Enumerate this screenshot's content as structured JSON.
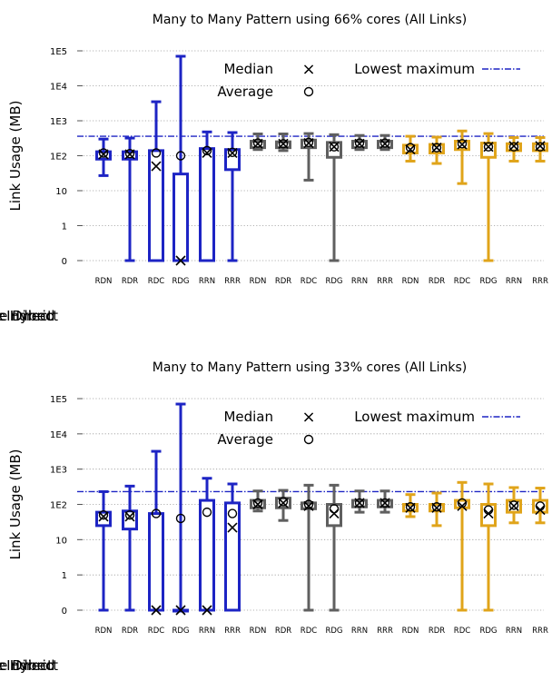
{
  "chart_data": [
    {
      "type": "box",
      "title": "Many to Many Pattern using 66% cores (All Links)",
      "ylabel": "Link Usage (MB)",
      "yscale": "log",
      "ytick_labels": [
        "0",
        "1",
        "10",
        "1E2",
        "1E3",
        "1E4",
        "1E5"
      ],
      "categories": [
        "RDN",
        "RDR",
        "RDC",
        "RDG",
        "RRN",
        "RRR",
        "RDN",
        "RDR",
        "RDC",
        "RDG",
        "RRN",
        "RRR",
        "RDN",
        "RDR",
        "RDC",
        "RDG",
        "RRN",
        "RRR"
      ],
      "group_labels": [
        "Adaptive Direct",
        "Adaptive Indirect",
        "Adaptive Hybrid"
      ],
      "group_colors": [
        "#1d24c4",
        "#5f5f5f",
        "#e0a41a"
      ],
      "legend": {
        "median": "Median",
        "average": "Average",
        "lowest_max": "Lowest maximum",
        "median_symbol": "×",
        "average_symbol": "○"
      },
      "lowest_maximum": 360,
      "boxes": [
        {
          "min": 27,
          "q1": 80,
          "median": 110,
          "q3": 130,
          "max": 300,
          "average": 120
        },
        {
          "min": 0,
          "q1": 80,
          "median": 110,
          "q3": 130,
          "max": 320,
          "average": 115
        },
        {
          "min": 0,
          "q1": 0,
          "median": 50,
          "q3": 140,
          "max": 3500,
          "average": 120
        },
        {
          "min": 0,
          "q1": 0,
          "median": 0,
          "q3": 30,
          "max": 70000,
          "average": 100
        },
        {
          "min": 0,
          "q1": 0,
          "median": 120,
          "q3": 160,
          "max": 480,
          "average": 140
        },
        {
          "min": 0,
          "q1": 40,
          "median": 120,
          "q3": 150,
          "max": 460,
          "average": 125
        },
        {
          "min": 150,
          "q1": 170,
          "median": 220,
          "q3": 260,
          "max": 420,
          "average": 230
        },
        {
          "min": 140,
          "q1": 170,
          "median": 220,
          "q3": 250,
          "max": 420,
          "average": 220
        },
        {
          "min": 20,
          "q1": 170,
          "median": 230,
          "q3": 280,
          "max": 430,
          "average": 240
        },
        {
          "min": 0,
          "q1": 90,
          "median": 180,
          "q3": 240,
          "max": 400,
          "average": 180
        },
        {
          "min": 150,
          "q1": 170,
          "median": 220,
          "q3": 260,
          "max": 380,
          "average": 230
        },
        {
          "min": 150,
          "q1": 170,
          "median": 220,
          "q3": 260,
          "max": 380,
          "average": 230
        },
        {
          "min": 70,
          "q1": 120,
          "median": 150,
          "q3": 200,
          "max": 360,
          "average": 170
        },
        {
          "min": 60,
          "q1": 120,
          "median": 170,
          "q3": 210,
          "max": 340,
          "average": 170
        },
        {
          "min": 16,
          "q1": 150,
          "median": 210,
          "q3": 260,
          "max": 510,
          "average": 220
        },
        {
          "min": 0,
          "q1": 90,
          "median": 180,
          "q3": 230,
          "max": 430,
          "average": 180
        },
        {
          "min": 70,
          "q1": 140,
          "median": 190,
          "q3": 220,
          "max": 330,
          "average": 180
        },
        {
          "min": 70,
          "q1": 140,
          "median": 190,
          "q3": 220,
          "max": 330,
          "average": 180
        }
      ]
    },
    {
      "type": "box",
      "title": "Many to Many Pattern using 33% cores (All Links)",
      "ylabel": "Link Usage (MB)",
      "yscale": "log",
      "ytick_labels": [
        "0",
        "1",
        "10",
        "1E2",
        "1E3",
        "1E4",
        "1E5"
      ],
      "categories": [
        "RDN",
        "RDR",
        "RDC",
        "RDG",
        "RRN",
        "RRR",
        "RDN",
        "RDR",
        "RDC",
        "RDG",
        "RRN",
        "RRR",
        "RDN",
        "RDR",
        "RDC",
        "RDG",
        "RRN",
        "RRR"
      ],
      "group_labels": [
        "Adaptive Direct",
        "Adaptive Indirect",
        "Adaptive Hybrid"
      ],
      "group_colors": [
        "#1d24c4",
        "#5f5f5f",
        "#e0a41a"
      ],
      "legend": {
        "median": "Median",
        "average": "Average",
        "lowest_max": "Lowest maximum",
        "median_symbol": "×",
        "average_symbol": "○"
      },
      "lowest_maximum": 230,
      "boxes": [
        {
          "min": 0,
          "q1": 25,
          "median": 45,
          "q3": 60,
          "max": 230,
          "average": 50
        },
        {
          "min": 0,
          "q1": 20,
          "median": 45,
          "q3": 65,
          "max": 330,
          "average": 50
        },
        {
          "min": 0,
          "q1": 0,
          "median": 0,
          "q3": 55,
          "max": 3200,
          "average": 55
        },
        {
          "min": 0,
          "q1": 0,
          "median": 0,
          "q3": 0,
          "max": 70000,
          "average": 40
        },
        {
          "min": 0,
          "q1": 0,
          "median": 0,
          "q3": 130,
          "max": 550,
          "average": 60
        },
        {
          "min": 0,
          "q1": 0,
          "median": 22,
          "q3": 110,
          "max": 380,
          "average": 55
        },
        {
          "min": 65,
          "q1": 80,
          "median": 100,
          "q3": 130,
          "max": 240,
          "average": 110
        },
        {
          "min": 35,
          "q1": 80,
          "median": 110,
          "q3": 150,
          "max": 250,
          "average": 120
        },
        {
          "min": 0,
          "q1": 75,
          "median": 90,
          "q3": 110,
          "max": 350,
          "average": 100
        },
        {
          "min": 0,
          "q1": 25,
          "median": 55,
          "q3": 100,
          "max": 350,
          "average": 75
        },
        {
          "min": 60,
          "q1": 85,
          "median": 110,
          "q3": 130,
          "max": 240,
          "average": 110
        },
        {
          "min": 60,
          "q1": 85,
          "median": 110,
          "q3": 130,
          "max": 240,
          "average": 110
        },
        {
          "min": 45,
          "q1": 65,
          "median": 80,
          "q3": 100,
          "max": 190,
          "average": 85
        },
        {
          "min": 25,
          "q1": 65,
          "median": 80,
          "q3": 100,
          "max": 210,
          "average": 85
        },
        {
          "min": 0,
          "q1": 80,
          "median": 90,
          "q3": 130,
          "max": 420,
          "average": 110
        },
        {
          "min": 0,
          "q1": 25,
          "median": 55,
          "q3": 100,
          "max": 380,
          "average": 70
        },
        {
          "min": 30,
          "q1": 60,
          "median": 90,
          "q3": 130,
          "max": 300,
          "average": 95
        },
        {
          "min": 30,
          "q1": 60,
          "median": 70,
          "q3": 130,
          "max": 290,
          "average": 90
        }
      ]
    }
  ]
}
